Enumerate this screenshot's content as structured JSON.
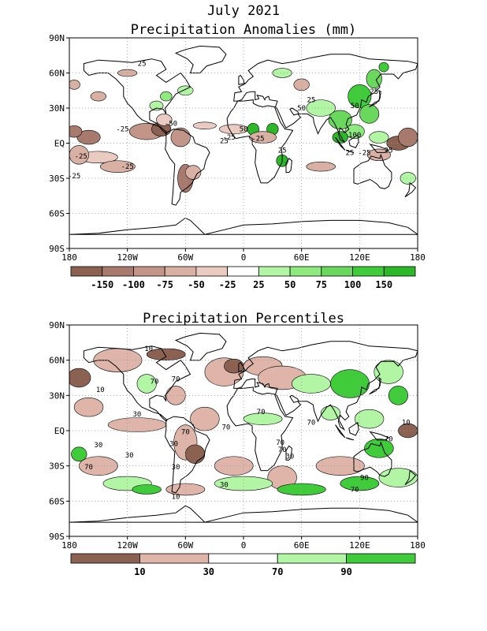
{
  "figure": {
    "main_title": "July 2021",
    "panels": [
      {
        "title": "Precipitation Anomalies (mm)",
        "legend_labels": [
          "-150",
          "-100",
          "-75",
          "-50",
          "-25",
          "25",
          "50",
          "75",
          "100",
          "150"
        ],
        "legend_colors": [
          "#8b6152",
          "#a87a6d",
          "#c29588",
          "#d9b0a4",
          "#eacbc1",
          "#ffffff",
          "#b2f5a5",
          "#8ee97f",
          "#6ad85c",
          "#3fcb3a",
          "#2db82a"
        ],
        "contour_labels": [
          "25",
          "-25",
          "-25",
          "-25",
          "-50",
          "-25",
          "25",
          "50",
          "-25",
          "-25",
          "25",
          "50",
          "25",
          "50",
          "25",
          "100",
          "25",
          "-25",
          "25"
        ]
      },
      {
        "title": "Precipitation Percentiles",
        "legend_labels": [
          "10",
          "30",
          "70",
          "90"
        ],
        "legend_colors": [
          "#8b6152",
          "#deb5a8",
          "#ffffff",
          "#b2f5a5",
          "#3fcb3a"
        ],
        "contour_labels": [
          "10",
          "10",
          "70",
          "70",
          "30",
          "70",
          "70",
          "30",
          "70",
          "70",
          "70",
          "10",
          "30",
          "30",
          "30",
          "70",
          "30",
          "70",
          "10",
          "30",
          "70",
          "90",
          "70"
        ]
      }
    ],
    "lat_labels": [
      "90N",
      "60N",
      "30N",
      "EQ",
      "30S",
      "60S",
      "90S"
    ],
    "lon_labels": [
      "180",
      "120W",
      "60W",
      "0",
      "60E",
      "120E",
      "180"
    ]
  }
}
